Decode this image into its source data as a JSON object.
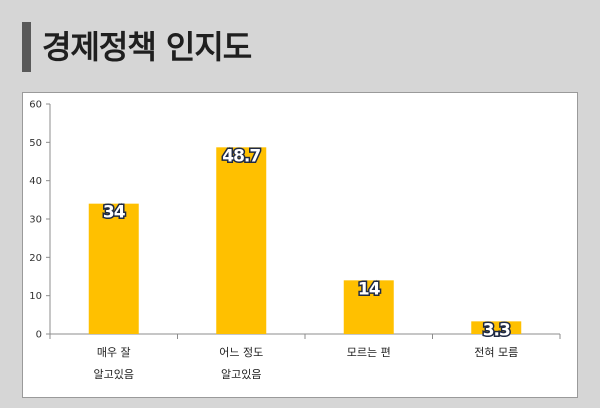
{
  "header": {
    "title": "경제정책 인지도"
  },
  "chart_data": {
    "type": "bar",
    "categories": [
      [
        "매우 잘",
        "알고있음"
      ],
      [
        "어느 정도",
        "알고있음"
      ],
      [
        "모르는 편"
      ],
      [
        "전혀 모름"
      ]
    ],
    "values": [
      34,
      48.7,
      14,
      3.3
    ],
    "data_labels": [
      "34",
      "48.7",
      "14",
      "3.3"
    ],
    "title": "",
    "xlabel": "",
    "ylabel": "",
    "ylim": [
      0,
      60
    ],
    "yticks": [
      "0",
      "10",
      "20",
      "30",
      "40",
      "50",
      "60"
    ],
    "grid": false,
    "legend": "none",
    "colors": {
      "bar": "#ffc000",
      "axis": "#8c8c8c",
      "label_stroke": "#1f2a44"
    }
  }
}
